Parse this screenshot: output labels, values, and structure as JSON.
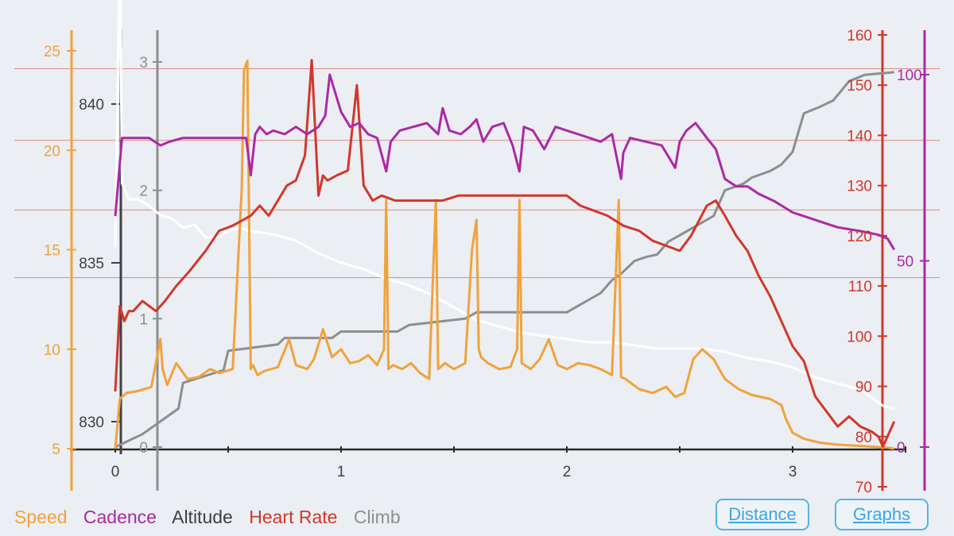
{
  "colors": {
    "speed": "#f0a33c",
    "cadence": "#ab29a6",
    "altitude": "#3d4148",
    "heart_rate": "#d0382a",
    "climb": "#8e8e8e",
    "grid": "#dc8a86",
    "altitude_line": "#ffffff",
    "button": "#3aa7e0"
  },
  "legend": {
    "speed": "Speed",
    "cadence": "Cadence",
    "altitude": "Altitude",
    "heart_rate": "Heart Rate",
    "climb": "Climb"
  },
  "buttons": {
    "distance": "Distance",
    "graphs": "Graphs"
  },
  "chart_data": {
    "type": "line",
    "title": "",
    "xlabel": "Distance",
    "x_ticks": [
      "0",
      "1",
      "2",
      "3"
    ],
    "xlim": [
      0,
      3.5
    ],
    "grid": true,
    "legend_position": "bottom-left",
    "axes": {
      "speed": {
        "range": [
          5,
          25
        ],
        "ticks": [
          "5",
          "10",
          "15",
          "20",
          "25"
        ]
      },
      "climb": {
        "range": [
          0,
          3
        ],
        "ticks": [
          "0",
          "1",
          "2",
          "3"
        ]
      },
      "altitude": {
        "range": [
          829.2,
          842.5
        ],
        "ticks": [
          "830",
          "835",
          "840"
        ]
      },
      "heart_rate": {
        "range": [
          70,
          160
        ],
        "ticks": [
          "70",
          "80",
          "90",
          "100",
          "110",
          "120",
          "130",
          "140",
          "150",
          "160"
        ]
      },
      "cadence": {
        "range": [
          0,
          100
        ],
        "ticks": [
          "0",
          "50",
          "100"
        ]
      }
    },
    "series": [
      {
        "name": "Speed",
        "key": "speed",
        "axis": "speed",
        "x": [
          0,
          0.02,
          0.05,
          0.1,
          0.16,
          0.2,
          0.21,
          0.23,
          0.27,
          0.32,
          0.37,
          0.42,
          0.46,
          0.52,
          0.56,
          0.57,
          0.585,
          0.6,
          0.61,
          0.63,
          0.66,
          0.72,
          0.77,
          0.8,
          0.85,
          0.88,
          0.92,
          0.96,
          1.0,
          1.04,
          1.08,
          1.12,
          1.16,
          1.19,
          1.2,
          1.21,
          1.23,
          1.27,
          1.31,
          1.35,
          1.39,
          1.42,
          1.43,
          1.44,
          1.46,
          1.5,
          1.55,
          1.58,
          1.6,
          1.61,
          1.62,
          1.65,
          1.7,
          1.75,
          1.78,
          1.79,
          1.8,
          1.84,
          1.88,
          1.92,
          1.96,
          2.0,
          2.05,
          2.1,
          2.15,
          2.2,
          2.23,
          2.24,
          2.26,
          2.32,
          2.38,
          2.44,
          2.48,
          2.52,
          2.56,
          2.6,
          2.65,
          2.7,
          2.76,
          2.82,
          2.9,
          2.95,
          2.97,
          3.0,
          3.05,
          3.12,
          3.2,
          3.28,
          3.35,
          3.42,
          3.45
        ],
        "values": [
          5.0,
          7.5,
          7.8,
          7.9,
          8.1,
          10.5,
          9.0,
          8.2,
          9.3,
          8.5,
          8.6,
          9.0,
          8.8,
          9.0,
          18.0,
          24.0,
          24.5,
          9.0,
          9.2,
          8.7,
          8.9,
          9.1,
          10.5,
          9.2,
          9.0,
          9.5,
          11.0,
          9.6,
          10.0,
          9.3,
          9.4,
          9.7,
          9.2,
          10.0,
          17.5,
          9.0,
          9.2,
          9.0,
          9.3,
          8.8,
          8.5,
          17.5,
          9.0,
          9.1,
          9.3,
          9.0,
          9.3,
          15.0,
          16.5,
          10.0,
          9.6,
          9.3,
          9.0,
          9.1,
          10.0,
          17.5,
          9.3,
          9.0,
          9.5,
          10.5,
          9.2,
          9.0,
          9.3,
          9.2,
          9.0,
          8.7,
          17.5,
          8.6,
          8.5,
          8.0,
          7.8,
          8.1,
          7.6,
          7.8,
          9.5,
          10.0,
          9.5,
          8.5,
          8.0,
          7.7,
          7.5,
          7.2,
          6.5,
          5.8,
          5.5,
          5.3,
          5.2,
          5.15,
          5.1,
          5.05,
          5.0
        ]
      },
      {
        "name": "Cadence",
        "key": "cadence",
        "axis": "cadence",
        "x": [
          0,
          0.03,
          0.07,
          0.15,
          0.2,
          0.24,
          0.3,
          0.4,
          0.5,
          0.58,
          0.6,
          0.62,
          0.64,
          0.67,
          0.7,
          0.75,
          0.8,
          0.85,
          0.9,
          0.93,
          0.95,
          0.97,
          1.0,
          1.04,
          1.08,
          1.12,
          1.16,
          1.2,
          1.22,
          1.26,
          1.32,
          1.38,
          1.43,
          1.45,
          1.48,
          1.53,
          1.57,
          1.6,
          1.63,
          1.67,
          1.72,
          1.76,
          1.79,
          1.81,
          1.85,
          1.9,
          1.95,
          2.0,
          2.05,
          2.1,
          2.15,
          2.2,
          2.24,
          2.25,
          2.28,
          2.35,
          2.42,
          2.48,
          2.5,
          2.53,
          2.57,
          2.62,
          2.66,
          2.7,
          2.75,
          2.8,
          2.85,
          2.92,
          3.0,
          3.1,
          3.2,
          3.3,
          3.38,
          3.42,
          3.45
        ],
        "values": [
          62,
          83,
          83,
          83,
          81,
          82,
          83,
          83,
          83,
          83,
          73,
          84,
          86,
          84,
          85,
          84,
          86,
          84,
          86,
          89,
          100,
          96,
          90,
          86,
          87,
          84,
          83,
          74,
          82,
          85,
          86,
          87,
          84,
          91,
          85,
          84,
          86,
          88,
          82,
          86,
          87,
          81,
          74,
          86,
          85,
          80,
          86,
          85,
          84,
          83,
          82,
          84,
          72,
          79,
          83,
          82,
          81,
          75,
          82,
          85,
          87,
          83,
          80,
          72,
          70,
          70,
          68,
          66,
          63,
          61,
          59,
          58,
          57,
          56,
          53
        ]
      },
      {
        "name": "Altitude",
        "key": "altitude",
        "axis": "altitude",
        "x": [
          0,
          0.02,
          0.03,
          0.06,
          0.1,
          0.15,
          0.2,
          0.25,
          0.3,
          0.35,
          0.4,
          0.45,
          0.5,
          0.55,
          0.6,
          0.7,
          0.8,
          0.9,
          1.0,
          1.1,
          1.2,
          1.3,
          1.4,
          1.5,
          1.6,
          1.7,
          1.8,
          1.9,
          2.0,
          2.1,
          2.2,
          2.3,
          2.4,
          2.5,
          2.6,
          2.7,
          2.8,
          2.9,
          3.0,
          3.1,
          3.2,
          3.3,
          3.4,
          3.45
        ],
        "values": [
          835.5,
          845,
          837.5,
          837.0,
          837.0,
          836.8,
          836.5,
          836.4,
          836.1,
          836.2,
          835.8,
          835.8,
          836.0,
          836.1,
          836.0,
          835.9,
          835.7,
          835.3,
          835.0,
          834.8,
          834.5,
          834.3,
          834.0,
          833.6,
          833.2,
          833.0,
          832.8,
          832.7,
          832.6,
          832.5,
          832.5,
          832.4,
          832.3,
          832.3,
          832.3,
          832.2,
          832.0,
          831.9,
          831.7,
          831.4,
          831.2,
          831.0,
          830.5,
          830.4
        ]
      },
      {
        "name": "Heart Rate",
        "key": "heart_rate",
        "axis": "heart_rate",
        "x": [
          0,
          0.02,
          0.04,
          0.06,
          0.08,
          0.12,
          0.18,
          0.22,
          0.27,
          0.33,
          0.4,
          0.46,
          0.52,
          0.56,
          0.6,
          0.64,
          0.68,
          0.72,
          0.76,
          0.8,
          0.84,
          0.87,
          0.9,
          0.92,
          0.94,
          0.98,
          1.03,
          1.07,
          1.1,
          1.14,
          1.18,
          1.24,
          1.3,
          1.38,
          1.45,
          1.52,
          1.6,
          1.7,
          1.8,
          1.9,
          2.0,
          2.06,
          2.12,
          2.18,
          2.25,
          2.32,
          2.38,
          2.44,
          2.5,
          2.55,
          2.62,
          2.66,
          2.7,
          2.75,
          2.8,
          2.85,
          2.9,
          2.95,
          3.0,
          3.05,
          3.1,
          3.15,
          3.2,
          3.25,
          3.3,
          3.35,
          3.38,
          3.4,
          3.42,
          3.45
        ],
        "values": [
          89,
          106,
          103,
          105,
          105,
          107,
          105,
          107,
          110,
          113,
          117,
          121,
          122,
          123,
          124,
          126,
          124,
          127,
          130,
          131,
          136,
          155,
          128,
          132,
          131,
          132,
          133,
          150,
          130,
          127,
          128,
          127,
          127,
          127,
          127,
          128,
          128,
          128,
          128,
          128,
          128,
          126,
          125,
          124,
          122,
          121,
          119,
          118,
          117,
          120,
          126,
          127,
          124,
          120,
          117,
          112,
          108,
          103,
          98,
          95,
          88,
          85,
          82,
          84,
          82,
          81,
          80,
          78,
          80,
          83
        ]
      },
      {
        "name": "Climb",
        "key": "climb",
        "axis": "climb",
        "x": [
          0,
          0.06,
          0.12,
          0.28,
          0.3,
          0.48,
          0.5,
          0.72,
          0.75,
          0.96,
          1.0,
          1.25,
          1.3,
          1.55,
          1.6,
          1.78,
          1.82,
          2.0,
          2.05,
          2.15,
          2.2,
          2.24,
          2.3,
          2.35,
          2.4,
          2.45,
          2.55,
          2.6,
          2.65,
          2.7,
          2.78,
          2.82,
          2.9,
          2.95,
          3.0,
          3.05,
          3.12,
          3.18,
          3.25,
          3.32,
          3.45
        ],
        "values": [
          0,
          0.05,
          0.1,
          0.3,
          0.5,
          0.6,
          0.75,
          0.8,
          0.85,
          0.85,
          0.9,
          0.9,
          0.95,
          1.0,
          1.05,
          1.05,
          1.05,
          1.05,
          1.1,
          1.2,
          1.3,
          1.35,
          1.45,
          1.48,
          1.5,
          1.6,
          1.7,
          1.75,
          1.8,
          2.0,
          2.05,
          2.1,
          2.15,
          2.2,
          2.3,
          2.6,
          2.65,
          2.7,
          2.85,
          2.9,
          2.92
        ]
      }
    ]
  }
}
